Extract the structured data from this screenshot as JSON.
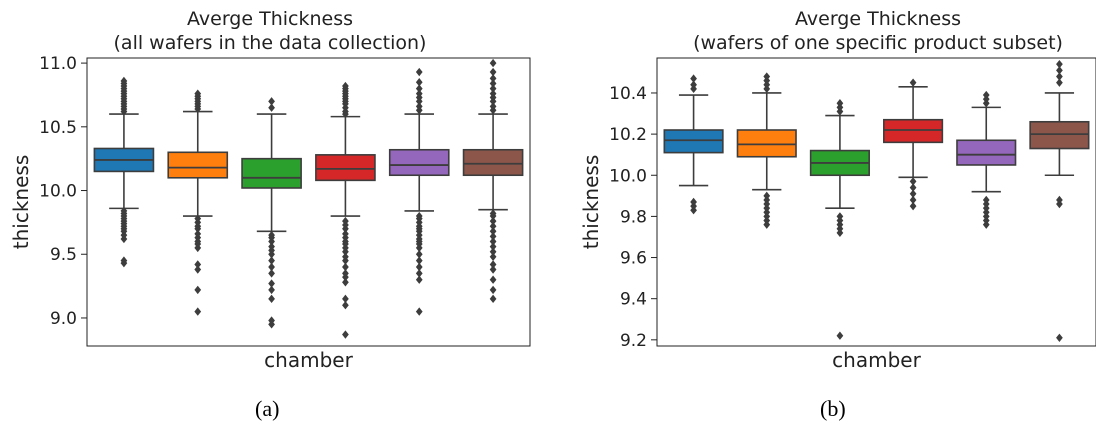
{
  "chart_data": [
    {
      "type": "box",
      "title": "Averge Thickness",
      "subtitle": "(all wafers in the data collection)",
      "xlabel": "chamber",
      "ylabel": "thickness",
      "ylim": [
        8.78,
        11.04
      ],
      "yticks": [
        9.0,
        9.5,
        10.0,
        10.5,
        11.0
      ],
      "ytick_labels": [
        "9.0",
        "9.5",
        "10.0",
        "10.5",
        "11.0"
      ],
      "grid": false,
      "boxes": [
        {
          "color": "#1f77b4",
          "whisker_low": 9.86,
          "q1": 10.15,
          "median": 10.24,
          "q3": 10.33,
          "whisker_high": 10.6,
          "outliers": [
            9.43,
            9.45,
            9.62,
            9.65,
            9.68,
            9.7,
            9.72,
            9.74,
            9.76,
            9.78,
            9.8,
            9.82,
            9.84,
            10.62,
            10.64,
            10.66,
            10.68,
            10.7,
            10.72,
            10.74,
            10.76,
            10.78,
            10.8,
            10.82,
            10.84,
            10.86
          ]
        },
        {
          "color": "#ff7f0e",
          "whisker_low": 9.8,
          "q1": 10.1,
          "median": 10.18,
          "q3": 10.3,
          "whisker_high": 10.62,
          "outliers": [
            9.05,
            9.22,
            9.38,
            9.42,
            9.55,
            9.58,
            9.6,
            9.63,
            9.66,
            9.7,
            9.72,
            9.75,
            9.78,
            10.64,
            10.66,
            10.68,
            10.7,
            10.72,
            10.74,
            10.76
          ]
        },
        {
          "color": "#2ca02c",
          "whisker_low": 9.68,
          "q1": 10.02,
          "median": 10.1,
          "q3": 10.25,
          "whisker_high": 10.6,
          "outliers": [
            8.95,
            8.98,
            9.15,
            9.22,
            9.27,
            9.35,
            9.4,
            9.45,
            9.5,
            9.53,
            9.56,
            9.6,
            9.63,
            9.65,
            10.65,
            10.7
          ]
        },
        {
          "color": "#d62728",
          "whisker_low": 9.8,
          "q1": 10.08,
          "median": 10.17,
          "q3": 10.28,
          "whisker_high": 10.58,
          "outliers": [
            8.87,
            9.1,
            9.15,
            9.28,
            9.32,
            9.35,
            9.4,
            9.45,
            9.48,
            9.52,
            9.55,
            9.58,
            9.6,
            9.63,
            9.66,
            9.7,
            9.73,
            9.76,
            10.6,
            10.62,
            10.65,
            10.68,
            10.7,
            10.72,
            10.74,
            10.76,
            10.78,
            10.8,
            10.82
          ]
        },
        {
          "color": "#9467bd",
          "whisker_low": 9.84,
          "q1": 10.12,
          "median": 10.2,
          "q3": 10.32,
          "whisker_high": 10.6,
          "outliers": [
            9.05,
            9.3,
            9.35,
            9.4,
            9.45,
            9.5,
            9.55,
            9.58,
            9.6,
            9.62,
            9.65,
            9.68,
            9.7,
            9.72,
            9.75,
            9.78,
            9.8,
            10.63,
            10.66,
            10.7,
            10.73,
            10.76,
            10.8,
            10.85,
            10.93
          ]
        },
        {
          "color": "#8c564b",
          "whisker_low": 9.85,
          "q1": 10.12,
          "median": 10.21,
          "q3": 10.32,
          "whisker_high": 10.6,
          "outliers": [
            9.15,
            9.22,
            9.3,
            9.38,
            9.42,
            9.48,
            9.52,
            9.56,
            9.6,
            9.64,
            9.68,
            9.72,
            9.76,
            9.8,
            9.82,
            10.63,
            10.66,
            10.7,
            10.73,
            10.76,
            10.8,
            10.84,
            10.88,
            10.93,
            11.0
          ]
        }
      ]
    },
    {
      "type": "box",
      "title": "Averge Thickness",
      "subtitle": "(wafers of one specific product subset)",
      "xlabel": "chamber",
      "ylabel": "thickness",
      "ylim": [
        9.17,
        10.57
      ],
      "yticks": [
        9.2,
        9.4,
        9.6,
        9.8,
        10.0,
        10.2,
        10.4
      ],
      "ytick_labels": [
        "9.2",
        "9.4",
        "9.6",
        "9.8",
        "10.0",
        "10.2",
        "10.4"
      ],
      "grid": false,
      "boxes": [
        {
          "color": "#1f77b4",
          "whisker_low": 9.95,
          "q1": 10.11,
          "median": 10.17,
          "q3": 10.22,
          "whisker_high": 10.39,
          "outliers": [
            9.83,
            9.85,
            9.87,
            10.42,
            10.44,
            10.47
          ]
        },
        {
          "color": "#ff7f0e",
          "whisker_low": 9.93,
          "q1": 10.09,
          "median": 10.15,
          "q3": 10.22,
          "whisker_high": 10.4,
          "outliers": [
            9.76,
            9.78,
            9.8,
            9.82,
            9.84,
            9.86,
            9.88,
            9.9,
            10.42,
            10.44,
            10.46,
            10.48
          ]
        },
        {
          "color": "#2ca02c",
          "whisker_low": 9.84,
          "q1": 10.0,
          "median": 10.06,
          "q3": 10.12,
          "whisker_high": 10.29,
          "outliers": [
            9.22,
            9.72,
            9.74,
            9.76,
            9.78,
            9.8,
            10.31,
            10.33,
            10.35
          ]
        },
        {
          "color": "#d62728",
          "whisker_low": 9.99,
          "q1": 10.16,
          "median": 10.22,
          "q3": 10.27,
          "whisker_high": 10.43,
          "outliers": [
            9.85,
            9.88,
            9.91,
            9.94,
            9.97,
            10.45
          ]
        },
        {
          "color": "#9467bd",
          "whisker_low": 9.92,
          "q1": 10.05,
          "median": 10.1,
          "q3": 10.17,
          "whisker_high": 10.33,
          "outliers": [
            9.76,
            9.78,
            9.8,
            9.82,
            9.84,
            9.86,
            9.88,
            10.35,
            10.37,
            10.39
          ]
        },
        {
          "color": "#8c564b",
          "whisker_low": 10.0,
          "q1": 10.13,
          "median": 10.2,
          "q3": 10.26,
          "whisker_high": 10.4,
          "outliers": [
            9.21,
            9.86,
            9.88,
            10.45,
            10.48,
            10.51,
            10.54
          ]
        }
      ]
    }
  ],
  "captions": {
    "a": "(a)",
    "b": "(b)"
  }
}
